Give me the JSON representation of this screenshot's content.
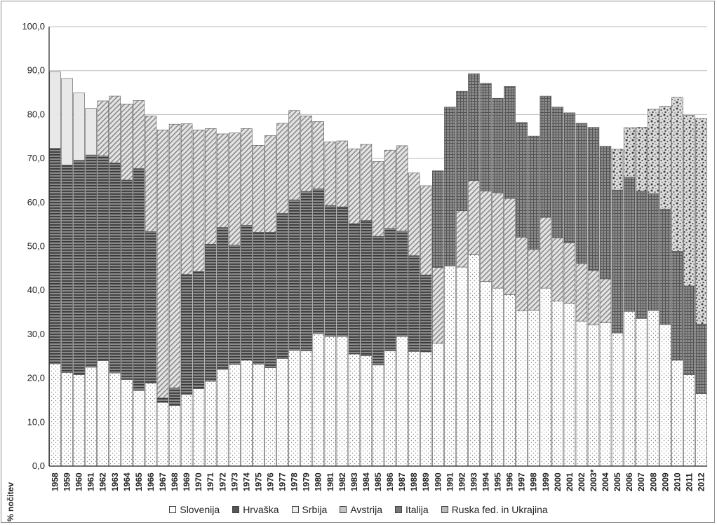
{
  "chart_data": {
    "type": "bar",
    "stacked": true,
    "ylabel": "% nočitev",
    "ylim": [
      0,
      100
    ],
    "yticks": [
      "0,0",
      "10,0",
      "20,0",
      "30,0",
      "40,0",
      "50,0",
      "60,0",
      "70,0",
      "80,0",
      "90,0",
      "100,0"
    ],
    "grid": "horizontal",
    "legend_position": "bottom",
    "categories": [
      "1958",
      "1959",
      "1960",
      "1961",
      "1962",
      "1963",
      "1964",
      "1965",
      "1966",
      "1967",
      "1968",
      "1969",
      "1970",
      "1971",
      "1972",
      "1973",
      "1974",
      "1975",
      "1976",
      "1977",
      "1978",
      "1979",
      "1980",
      "1981",
      "1982",
      "1983",
      "1984",
      "1985",
      "1986",
      "1987",
      "1988",
      "1989",
      "1990",
      "1991",
      "1992",
      "1993",
      "1994",
      "1995",
      "1996",
      "1997",
      "1998",
      "1999",
      "2000",
      "2001",
      "2002",
      "2003*",
      "2004",
      "2005",
      "2006",
      "2007",
      "2008",
      "2009",
      "2010",
      "2011",
      "2012"
    ],
    "series": [
      {
        "name": "Slovenija",
        "color": "#ffffff",
        "pattern": "dots",
        "values": [
          23.3,
          21.3,
          20.8,
          22.5,
          24.0,
          21.2,
          19.7,
          17.2,
          18.9,
          14.5,
          13.8,
          16.3,
          17.6,
          19.3,
          22.0,
          23.1,
          24.1,
          23.2,
          22.4,
          24.5,
          26.3,
          26.2,
          30.1,
          29.5,
          29.5,
          25.5,
          25.1,
          23.0,
          26.2,
          29.5,
          26.1,
          26.0,
          28.0,
          45.5,
          45.3,
          48.1,
          42.0,
          40.5,
          39.0,
          35.3,
          35.5,
          40.5,
          37.6,
          37.1,
          33.0,
          32.1,
          32.6,
          30.3,
          35.2,
          33.6,
          35.4,
          32.2,
          24.1,
          20.8,
          16.5
        ]
      },
      {
        "name": "Hrvaška",
        "color": "#6e6e6e",
        "pattern": "hstripes",
        "values": [
          49.0,
          47.2,
          48.8,
          48.3,
          46.6,
          47.8,
          45.4,
          50.5,
          34.5,
          1.0,
          4.0,
          27.3,
          26.7,
          31.2,
          32.3,
          27.2,
          30.7,
          30.0,
          30.8,
          33.0,
          34.3,
          36.3,
          33.0,
          29.8,
          29.5,
          29.7,
          30.8,
          29.3,
          27.9,
          24.0,
          21.8,
          17.5,
          0,
          0,
          0,
          0,
          0,
          0,
          0,
          0,
          0,
          0,
          0,
          0,
          0,
          0,
          0,
          0,
          0,
          0,
          0,
          0,
          0,
          0,
          0
        ]
      },
      {
        "name": "Srbija",
        "color": "#e8e8e8",
        "pattern": "solid",
        "values": [
          17.4,
          19.7,
          15.3,
          10.6,
          0,
          0,
          0,
          0,
          0,
          0,
          0,
          0,
          0,
          0,
          0,
          0,
          0,
          0,
          0,
          0,
          0,
          0,
          0,
          0,
          0,
          0,
          0,
          0,
          0,
          0,
          0,
          0,
          0,
          0,
          0,
          0,
          0,
          0,
          0,
          0,
          0,
          0,
          0,
          0,
          0,
          0,
          0,
          0,
          0,
          0,
          0,
          0,
          0,
          0,
          0
        ]
      },
      {
        "name": "Avstrija",
        "color": "#d2d2d2",
        "pattern": "diag",
        "values": [
          0,
          0,
          0,
          0,
          12.5,
          15.2,
          17.3,
          15.5,
          26.3,
          61.0,
          60.0,
          34.3,
          32.2,
          26.3,
          21.3,
          25.5,
          22.0,
          19.8,
          22.0,
          20.5,
          20.3,
          17.2,
          15.3,
          14.5,
          15.0,
          17.0,
          17.3,
          17.0,
          17.8,
          19.4,
          18.8,
          20.3,
          17.2,
          0,
          12.8,
          16.9,
          20.6,
          21.7,
          21.9,
          16.8,
          13.8,
          16.1,
          14.3,
          13.7,
          13.1,
          12.4,
          10.0,
          0,
          0,
          0,
          0,
          0,
          0,
          0,
          0
        ]
      },
      {
        "name": "Italija",
        "color": "#7c7c7c",
        "pattern": "grid",
        "values": [
          0,
          0,
          0,
          0,
          0,
          0,
          0,
          0,
          0,
          0,
          0,
          0,
          0,
          0,
          0,
          0,
          0,
          0,
          0,
          0,
          0,
          0,
          0,
          0,
          0,
          0,
          0,
          0,
          0,
          0,
          0,
          0,
          22.0,
          36.2,
          27.2,
          24.3,
          24.5,
          21.5,
          25.5,
          26.1,
          25.8,
          27.6,
          29.8,
          29.6,
          31.9,
          32.6,
          30.2,
          32.5,
          30.5,
          29.0,
          26.6,
          26.3,
          24.8,
          20.2,
          15.8
        ]
      },
      {
        "name": "Ruska fed. in Ukrajina",
        "color": "#d6d6d6",
        "pattern": "blotch",
        "values": [
          0,
          0,
          0,
          0,
          0,
          0,
          0,
          0,
          0,
          0,
          0,
          0,
          0,
          0,
          0,
          0,
          0,
          0,
          0,
          0,
          0,
          0,
          0,
          0,
          0,
          0,
          0,
          0,
          0,
          0,
          0,
          0,
          0,
          0,
          0,
          0,
          0,
          0,
          0,
          0,
          0,
          0,
          0,
          0,
          0,
          0,
          0,
          9.3,
          11.3,
          14.5,
          19.2,
          23.4,
          35.0,
          38.8,
          46.8
        ]
      }
    ]
  }
}
